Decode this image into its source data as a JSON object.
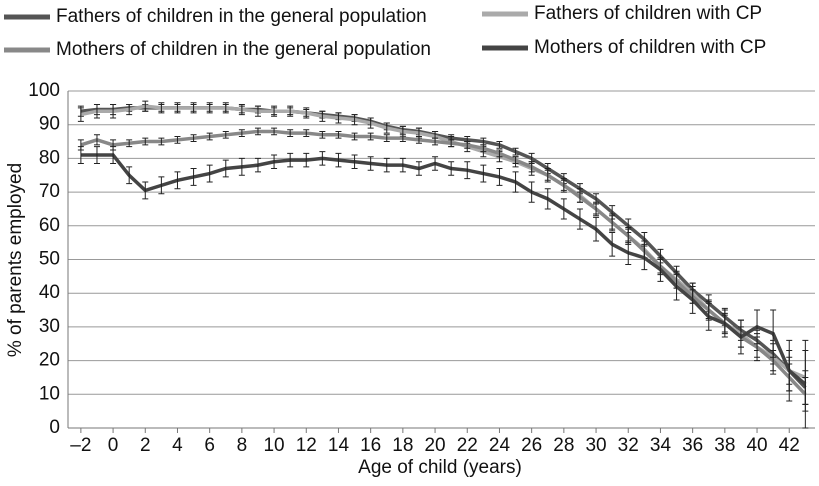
{
  "chart_data": {
    "type": "line",
    "x_label": "Age of child (years)",
    "y_label": "% of parents employed",
    "x": [
      -2,
      -1,
      0,
      1,
      2,
      3,
      4,
      5,
      6,
      7,
      8,
      9,
      10,
      11,
      12,
      13,
      14,
      15,
      16,
      17,
      18,
      19,
      20,
      21,
      22,
      23,
      24,
      25,
      26,
      27,
      28,
      29,
      30,
      31,
      32,
      33,
      34,
      35,
      36,
      37,
      38,
      39,
      40,
      41,
      42,
      43
    ],
    "xlim": [
      -2.8,
      43.6
    ],
    "xticks": [
      {
        "value": -2,
        "label": "–2"
      },
      0,
      2,
      4,
      6,
      8,
      10,
      12,
      14,
      16,
      18,
      20,
      22,
      24,
      26,
      28,
      30,
      32,
      34,
      36,
      38,
      40,
      42
    ],
    "ylim": [
      0,
      100
    ],
    "yticks": [
      0,
      10,
      20,
      30,
      40,
      50,
      60,
      70,
      80,
      90,
      100
    ],
    "grid": true,
    "legend": "top",
    "series": [
      {
        "name": "Fathers of children in the general population",
        "color": "#555555",
        "values": [
          94,
          94.5,
          94.5,
          95,
          95,
          95,
          95,
          95,
          95,
          95,
          94.5,
          94.5,
          94,
          94,
          93.5,
          93,
          92.5,
          92,
          91,
          89.5,
          88.5,
          88,
          87,
          86,
          85.5,
          85,
          84,
          82,
          80,
          77,
          74,
          71,
          68,
          64,
          60,
          56,
          51,
          46,
          41,
          37,
          33,
          29,
          26,
          22,
          17,
          12
        ],
        "errors": [
          1.5,
          1.5,
          1.5,
          1,
          1,
          1,
          1,
          1,
          1,
          1,
          1,
          1,
          1,
          1,
          1,
          1,
          1,
          1,
          1,
          1,
          1,
          1,
          1,
          1,
          1,
          1,
          1,
          1,
          1.5,
          1.5,
          1.5,
          1.5,
          1.5,
          2,
          2,
          2,
          2,
          2,
          2,
          2.5,
          2.5,
          3,
          3,
          3,
          4,
          5
        ]
      },
      {
        "name": "Fathers of children with CP",
        "color": "#aaaaaa",
        "values": [
          93,
          94,
          94,
          94.5,
          95.5,
          95,
          95,
          95,
          95,
          95,
          94.5,
          94,
          94,
          94,
          93.5,
          92.5,
          92,
          91.5,
          90.5,
          89,
          88,
          87.5,
          86.5,
          85,
          83.5,
          82,
          80.5,
          79,
          77,
          75,
          72,
          69,
          65,
          61,
          57,
          53,
          48,
          44,
          40,
          35,
          31,
          28,
          24,
          21,
          17,
          15
        ],
        "errors": [
          2,
          2,
          2,
          1.5,
          1.5,
          1.5,
          1.5,
          1.5,
          1.5,
          1.5,
          1.5,
          1.5,
          1.5,
          1.5,
          1.5,
          1.5,
          1.5,
          1.5,
          1.5,
          1.5,
          1.5,
          1.5,
          1.5,
          1.5,
          1.5,
          1.5,
          1.5,
          1.5,
          2,
          2,
          2,
          2,
          2,
          2.5,
          2.5,
          2.5,
          2.5,
          2.5,
          3,
          3,
          3,
          4,
          4,
          5,
          6,
          8
        ]
      },
      {
        "name": "Mothers of children in the general population",
        "color": "#888888",
        "values": [
          84,
          85.5,
          84,
          84.5,
          85,
          85,
          85.5,
          86,
          86.5,
          87,
          87.5,
          88,
          88,
          87.5,
          87.5,
          87,
          87,
          86.5,
          86.5,
          86,
          86,
          85.5,
          85,
          84.5,
          84,
          83,
          81.5,
          79.5,
          77.5,
          75,
          72,
          68.5,
          65,
          61,
          57,
          52.5,
          48,
          43.5,
          39,
          35,
          31,
          27,
          24,
          20,
          15,
          10
        ],
        "errors": [
          1.5,
          1.5,
          1.5,
          1,
          1,
          1,
          1,
          1,
          1,
          1,
          1,
          1,
          1,
          1,
          1,
          1,
          1,
          1,
          1,
          1,
          1,
          1,
          1,
          1,
          1,
          1,
          1,
          1,
          1.5,
          1.5,
          1.5,
          1.5,
          1.5,
          2,
          2,
          2,
          2,
          2,
          2,
          2.5,
          2.5,
          3,
          3,
          3,
          4,
          5
        ]
      },
      {
        "name": "Mothers of children with CP",
        "color": "#444444",
        "values": [
          81,
          81,
          81,
          75,
          70.5,
          72,
          73.5,
          74.5,
          75.5,
          77,
          77.5,
          78,
          79,
          79.5,
          79.5,
          80,
          79.5,
          79,
          78.5,
          78,
          78,
          77,
          78.5,
          77,
          76.5,
          75.5,
          74.5,
          73,
          70,
          68,
          65,
          62,
          59,
          54.5,
          52,
          50.5,
          47,
          42,
          38,
          33,
          31,
          27,
          30,
          28,
          17,
          13
        ],
        "errors": [
          2.5,
          2.5,
          2.5,
          2.5,
          2.5,
          2.5,
          2.5,
          2.5,
          2.5,
          2.5,
          2.5,
          2,
          2,
          2,
          2,
          2,
          2,
          2,
          2,
          2,
          2,
          2,
          2,
          2,
          2.5,
          2.5,
          2.5,
          3,
          3,
          3,
          3,
          3,
          3.5,
          3.5,
          3.5,
          3.5,
          3.5,
          4,
          4,
          4,
          4,
          5,
          5,
          7,
          9,
          13
        ]
      }
    ]
  }
}
